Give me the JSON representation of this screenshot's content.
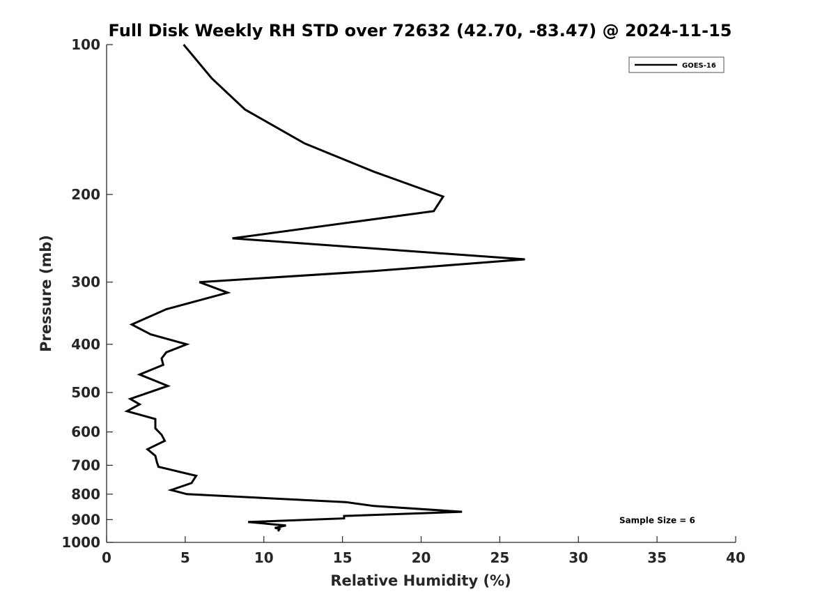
{
  "chart_data": {
    "type": "line",
    "title": "Full Disk Weekly RH STD over 72632 (42.70, -83.47) @ 2024-11-15",
    "xlabel": "Relative Humidity (%)",
    "ylabel": "Pressure (mb)",
    "xlim": [
      0,
      40
    ],
    "ylim": [
      100,
      1000
    ],
    "yscale": "log",
    "y_reversed": true,
    "x_ticks": [
      0,
      5,
      10,
      15,
      20,
      25,
      30,
      35,
      40
    ],
    "x_tick_labels": [
      "0",
      "5",
      "10",
      "15",
      "20",
      "25",
      "30",
      "35",
      "40"
    ],
    "y_ticks": [
      100,
      200,
      300,
      400,
      500,
      600,
      700,
      800,
      900,
      1000
    ],
    "y_tick_labels": [
      "100",
      "200",
      "300",
      "400",
      "500",
      "600",
      "700",
      "800",
      "900",
      "1000"
    ],
    "grid": false,
    "legend_position": "top-right",
    "series": [
      {
        "name": "GOES-16",
        "color": "#000000",
        "x": [
          4.9,
          6.7,
          8.8,
          12.6,
          17.0,
          21.4,
          20.8,
          8.0,
          26.6,
          17.0,
          5.9,
          7.7,
          3.8,
          1.6,
          2.8,
          5.1,
          3.8,
          3.5,
          3.6,
          2.1,
          3.9,
          1.5,
          2.1,
          1.3,
          3.1,
          3.1,
          3.5,
          3.7,
          2.6,
          3.1,
          3.2,
          3.3,
          5.7,
          5.4,
          4.1,
          5.1,
          15.2,
          17.0,
          22.6,
          15.1,
          15.1,
          9.0,
          11.4,
          10.7,
          11.0,
          10.9
        ],
        "y": [
          100,
          117,
          135,
          158,
          180,
          202,
          216,
          245,
          270,
          285,
          300,
          315,
          340,
          365,
          382,
          400,
          415,
          427,
          440,
          460,
          485,
          515,
          528,
          545,
          565,
          590,
          608,
          625,
          650,
          670,
          690,
          705,
          735,
          760,
          785,
          800,
          830,
          845,
          868,
          885,
          895,
          910,
          925,
          935,
          940,
          950
        ]
      }
    ],
    "annotations": [
      {
        "text": "Sample Size = 6",
        "x": 32.6,
        "y": 900
      }
    ]
  }
}
